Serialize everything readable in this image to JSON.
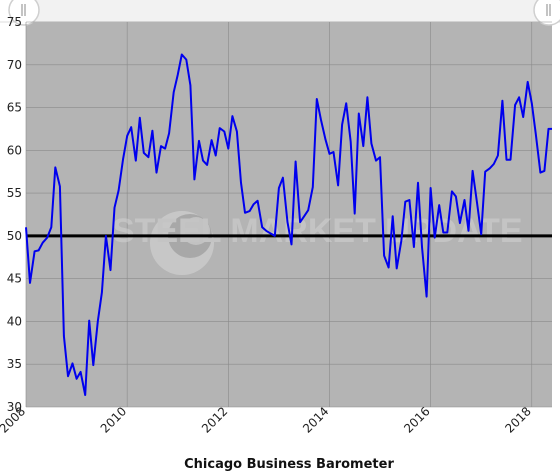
{
  "chart_data": {
    "type": "line",
    "title": "",
    "xlabel": "Chicago Business Barometer",
    "ylabel": "",
    "xlim": [
      2008.0,
      2018.4
    ],
    "ylim": [
      30,
      75
    ],
    "yticks": [
      30,
      35,
      40,
      45,
      50,
      55,
      60,
      65,
      70,
      75
    ],
    "xticks": [
      2008,
      2010,
      2012,
      2014,
      2016,
      2018
    ],
    "grid": true,
    "legend": "none",
    "reference_line": 50,
    "colors": {
      "line": "#0000ee",
      "reference": "#000000",
      "plot_bg": "#b4b4b4",
      "grid": "#8a8a8a"
    },
    "watermark": "STEEL MARKET UPDATE",
    "series": [
      {
        "x": [
          2008.0,
          2008.08,
          2008.17,
          2008.25,
          2008.33,
          2008.42,
          2008.5,
          2008.58,
          2008.67,
          2008.75,
          2008.83,
          2008.92,
          2009.0,
          2009.08,
          2009.17,
          2009.25,
          2009.33,
          2009.42,
          2009.5,
          2009.58,
          2009.67,
          2009.75,
          2009.83,
          2009.92,
          2010.0,
          2010.08,
          2010.17,
          2010.25,
          2010.33,
          2010.42,
          2010.5,
          2010.58,
          2010.67,
          2010.75,
          2010.83,
          2010.92,
          2011.0,
          2011.08,
          2011.17,
          2011.25,
          2011.33,
          2011.42,
          2011.5,
          2011.58,
          2011.67,
          2011.75,
          2011.83,
          2011.92,
          2012.0,
          2012.08,
          2012.17,
          2012.25,
          2012.33,
          2012.42,
          2012.5,
          2012.58,
          2012.67,
          2012.75,
          2012.83,
          2012.92,
          2013.0,
          2013.08,
          2013.17,
          2013.25,
          2013.33,
          2013.42,
          2013.5,
          2013.58,
          2013.67,
          2013.75,
          2013.83,
          2013.92,
          2014.0,
          2014.08,
          2014.17,
          2014.25,
          2014.33,
          2014.42,
          2014.5,
          2014.58,
          2014.67,
          2014.75,
          2014.83,
          2014.92,
          2015.0,
          2015.08,
          2015.17,
          2015.25,
          2015.33,
          2015.42,
          2015.5,
          2015.58,
          2015.67,
          2015.75,
          2015.83,
          2015.92,
          2016.0,
          2016.08,
          2016.17,
          2016.25,
          2016.33,
          2016.42,
          2016.5,
          2016.58,
          2016.67,
          2016.75,
          2016.83,
          2016.92,
          2017.0,
          2017.08,
          2017.17,
          2017.25,
          2017.33,
          2017.42,
          2017.5,
          2017.58,
          2017.67,
          2017.75,
          2017.83,
          2017.92,
          2018.0,
          2018.08,
          2018.17,
          2018.25,
          2018.33,
          2018.4
        ],
        "y": [
          51.0,
          44.5,
          48.2,
          48.3,
          49.2,
          49.8,
          51.0,
          58.0,
          55.8,
          38.3,
          33.6,
          35.1,
          33.3,
          34.1,
          31.4,
          40.1,
          34.9,
          40.0,
          43.4,
          50.0,
          46.0,
          53.3,
          55.3,
          59.0,
          61.7,
          62.7,
          58.8,
          63.8,
          59.7,
          59.2,
          62.3,
          57.4,
          60.5,
          60.2,
          62.0,
          66.8,
          68.8,
          71.2,
          70.6,
          67.6,
          56.6,
          61.1,
          58.8,
          58.3,
          61.2,
          59.4,
          62.6,
          62.2,
          60.2,
          64.0,
          62.2,
          56.2,
          52.7,
          52.9,
          53.7,
          54.1,
          51.0,
          50.6,
          50.3,
          50.0,
          55.6,
          56.8,
          51.6,
          49.0,
          58.7,
          51.6,
          52.3,
          53.0,
          55.7,
          66.0,
          63.6,
          61.3,
          59.6,
          59.8,
          55.9,
          63.0,
          65.5,
          61.0,
          52.6,
          64.3,
          60.5,
          66.2,
          60.8,
          58.8,
          59.2,
          47.7,
          46.3,
          52.3,
          46.2,
          49.4,
          54.0,
          54.2,
          48.7,
          56.2,
          48.7,
          42.9,
          55.6,
          49.8,
          53.6,
          50.4,
          50.4,
          55.2,
          54.6,
          51.5,
          54.2,
          50.6,
          57.6,
          53.8,
          50.2,
          57.5,
          57.9,
          58.4,
          59.4,
          65.8,
          58.9,
          58.9,
          65.3,
          66.2,
          63.9,
          68.0,
          65.5,
          61.9,
          57.4,
          57.6,
          62.5,
          62.5
        ]
      }
    ]
  }
}
